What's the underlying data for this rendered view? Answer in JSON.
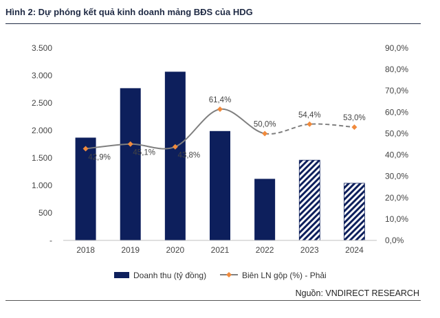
{
  "title": "Hình 2: Dự phóng kết quả kinh doanh mảng BĐS của HDG",
  "source": "Nguồn: VNDIRECT RESEARCH",
  "colors": {
    "bar": "#0d1f5c",
    "line_actual": "#7f7f7f",
    "marker": "#f08a3c"
  },
  "chart_data": {
    "type": "bar",
    "categories": [
      "2018",
      "2019",
      "2020",
      "2021",
      "2022",
      "2023",
      "2024"
    ],
    "series": [
      {
        "name": "Doanh thu (tỷ đồng)",
        "type": "bar",
        "axis": "left",
        "values": [
          1870,
          2770,
          3070,
          1990,
          1120,
          1460,
          1040
        ],
        "forecast_from_index": 5
      },
      {
        "name": "Biên LN gộp (%) - Phải",
        "type": "line",
        "axis": "right",
        "values": [
          42.9,
          45.1,
          43.8,
          61.4,
          50.0,
          54.4,
          53.0
        ],
        "labels": [
          "42,9%",
          "45,1%",
          "43,8%",
          "61,4%",
          "50,0%",
          "54,4%",
          "53,0%"
        ],
        "forecast_from_index": 4
      }
    ],
    "y_left": {
      "range": [
        0,
        3500
      ],
      "ticks": [
        "-",
        "500",
        "1.000",
        "1.500",
        "2.000",
        "2.500",
        "3.000",
        "3.500"
      ]
    },
    "y_right": {
      "range": [
        0,
        90
      ],
      "ticks": [
        "0,0%",
        "10,0%",
        "20,0%",
        "30,0%",
        "40,0%",
        "50,0%",
        "60,0%",
        "70,0%",
        "80,0%",
        "90,0%"
      ]
    },
    "grid": false,
    "legend": {
      "position": "bottom",
      "items": [
        "Doanh thu (tỷ đồng)",
        "Biên LN gộp (%) - Phải"
      ]
    }
  }
}
